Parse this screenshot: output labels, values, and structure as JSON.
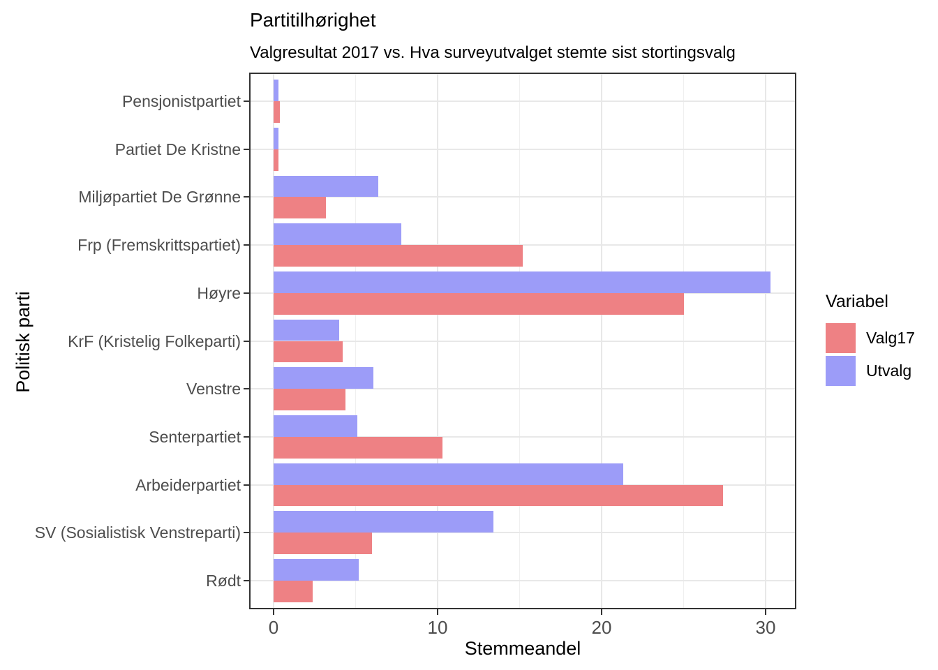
{
  "chart_data": {
    "type": "bar",
    "orientation": "horizontal",
    "title": "Partitilhørighet",
    "subtitle": "Valgresultat 2017 vs. Hva surveyutvalget stemte sist stortingsvalg",
    "xlabel": "Stemmeandel",
    "ylabel": "Politisk parti",
    "xlim": [
      0,
      31.8
    ],
    "x_major_ticks": [
      0,
      10,
      20,
      30
    ],
    "x_minor_gridlines": [
      5,
      15,
      25
    ],
    "grid": true,
    "legend_position": "right",
    "categories": [
      "Pensjonistpartiet",
      "Partiet De Kristne",
      "Miljøpartiet De Grønne",
      "Frp (Fremskrittspartiet)",
      "Høyre",
      "KrF (Kristelig Folkeparti)",
      "Venstre",
      "Senterpartiet",
      "Arbeiderpartiet",
      "SV (Sosialistisk Venstreparti)",
      "Rødt"
    ],
    "series": [
      {
        "name": "Utvalg",
        "color": "#9C9CF8",
        "position_in_group": "top",
        "values": [
          0.3,
          0.3,
          6.4,
          7.8,
          30.3,
          4.0,
          6.1,
          5.1,
          21.3,
          13.4,
          5.2
        ]
      },
      {
        "name": "Valg17",
        "color": "#EE8184",
        "position_in_group": "bottom",
        "values": [
          0.4,
          0.3,
          3.2,
          15.2,
          25.0,
          4.2,
          4.4,
          10.3,
          27.4,
          6.0,
          2.4
        ]
      }
    ],
    "legend": {
      "title": "Variabel",
      "entries": [
        {
          "label": "Valg17",
          "color": "#EE8184"
        },
        {
          "label": "Utvalg",
          "color": "#9C9CF8"
        }
      ]
    }
  },
  "colors": {
    "axis_text": "#4D4D4D",
    "panel_border": "#333333",
    "gridline_major": "#E8E8E8",
    "gridline_minor": "#EFEFEF",
    "background": "#FFFFFF"
  }
}
